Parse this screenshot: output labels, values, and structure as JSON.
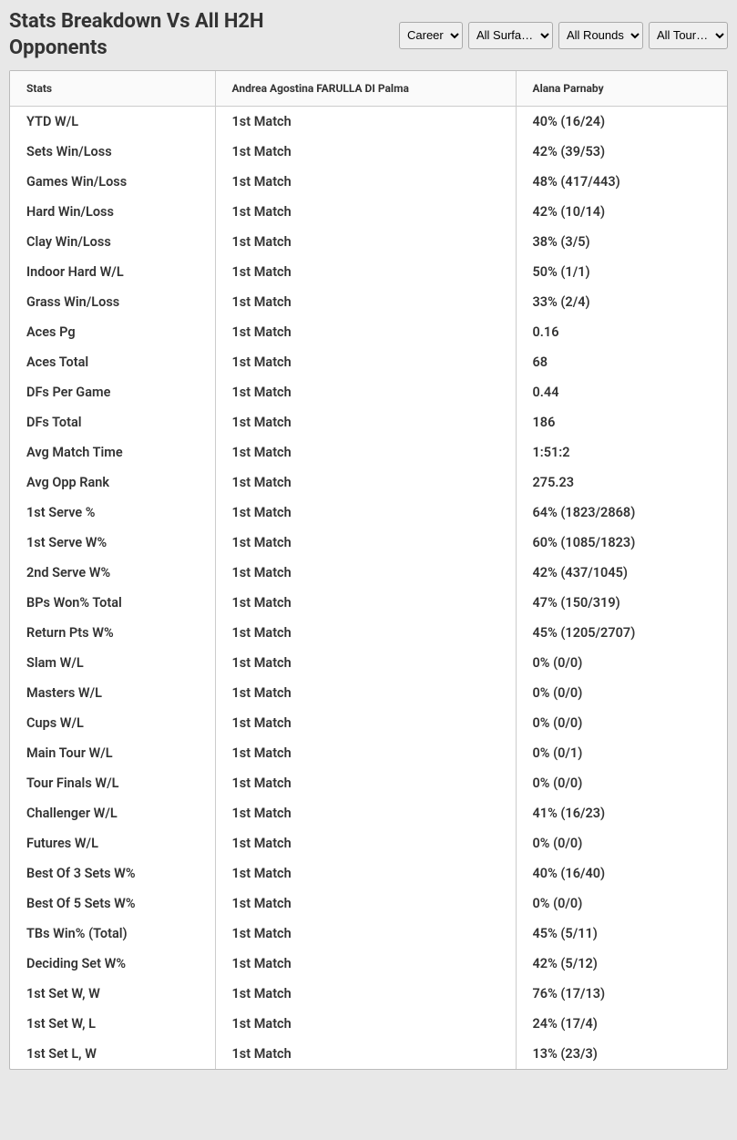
{
  "title": "Stats Breakdown Vs All H2H Opponents",
  "filters": {
    "timeframe": {
      "selected": "Career"
    },
    "surface": {
      "selected": "All Surfa…"
    },
    "round": {
      "selected": "All Rounds"
    },
    "tour": {
      "selected": "All Tour…"
    }
  },
  "columns": {
    "stats": "Stats",
    "player1": "Andrea Agostina FARULLA DI Palma",
    "player2": "Alana Parnaby"
  },
  "rows": [
    {
      "stat": "YTD W/L",
      "p1": "1st Match",
      "p2": "40% (16/24)"
    },
    {
      "stat": "Sets Win/Loss",
      "p1": "1st Match",
      "p2": "42% (39/53)"
    },
    {
      "stat": "Games Win/Loss",
      "p1": "1st Match",
      "p2": "48% (417/443)"
    },
    {
      "stat": "Hard Win/Loss",
      "p1": "1st Match",
      "p2": "42% (10/14)"
    },
    {
      "stat": "Clay Win/Loss",
      "p1": "1st Match",
      "p2": "38% (3/5)"
    },
    {
      "stat": "Indoor Hard W/L",
      "p1": "1st Match",
      "p2": "50% (1/1)"
    },
    {
      "stat": "Grass Win/Loss",
      "p1": "1st Match",
      "p2": "33% (2/4)"
    },
    {
      "stat": "Aces Pg",
      "p1": "1st Match",
      "p2": "0.16"
    },
    {
      "stat": "Aces Total",
      "p1": "1st Match",
      "p2": "68"
    },
    {
      "stat": "DFs Per Game",
      "p1": "1st Match",
      "p2": "0.44"
    },
    {
      "stat": "DFs Total",
      "p1": "1st Match",
      "p2": "186"
    },
    {
      "stat": "Avg Match Time",
      "p1": "1st Match",
      "p2": "1:51:2"
    },
    {
      "stat": "Avg Opp Rank",
      "p1": "1st Match",
      "p2": "275.23"
    },
    {
      "stat": "1st Serve %",
      "p1": "1st Match",
      "p2": "64% (1823/2868)"
    },
    {
      "stat": "1st Serve W%",
      "p1": "1st Match",
      "p2": "60% (1085/1823)"
    },
    {
      "stat": "2nd Serve W%",
      "p1": "1st Match",
      "p2": "42% (437/1045)"
    },
    {
      "stat": "BPs Won% Total",
      "p1": "1st Match",
      "p2": "47% (150/319)"
    },
    {
      "stat": "Return Pts W%",
      "p1": "1st Match",
      "p2": "45% (1205/2707)"
    },
    {
      "stat": "Slam W/L",
      "p1": "1st Match",
      "p2": "0% (0/0)"
    },
    {
      "stat": "Masters W/L",
      "p1": "1st Match",
      "p2": "0% (0/0)"
    },
    {
      "stat": "Cups W/L",
      "p1": "1st Match",
      "p2": "0% (0/0)"
    },
    {
      "stat": "Main Tour W/L",
      "p1": "1st Match",
      "p2": "0% (0/1)"
    },
    {
      "stat": "Tour Finals W/L",
      "p1": "1st Match",
      "p2": "0% (0/0)"
    },
    {
      "stat": "Challenger W/L",
      "p1": "1st Match",
      "p2": "41% (16/23)"
    },
    {
      "stat": "Futures W/L",
      "p1": "1st Match",
      "p2": "0% (0/0)"
    },
    {
      "stat": "Best Of 3 Sets W%",
      "p1": "1st Match",
      "p2": "40% (16/40)"
    },
    {
      "stat": "Best Of 5 Sets W%",
      "p1": "1st Match",
      "p2": "0% (0/0)"
    },
    {
      "stat": "TBs Win% (Total)",
      "p1": "1st Match",
      "p2": "45% (5/11)"
    },
    {
      "stat": "Deciding Set W%",
      "p1": "1st Match",
      "p2": "42% (5/12)"
    },
    {
      "stat": "1st Set W, W",
      "p1": "1st Match",
      "p2": "76% (17/13)"
    },
    {
      "stat": "1st Set W, L",
      "p1": "1st Match",
      "p2": "24% (17/4)"
    },
    {
      "stat": "1st Set L, W",
      "p1": "1st Match",
      "p2": "13% (23/3)"
    }
  ]
}
